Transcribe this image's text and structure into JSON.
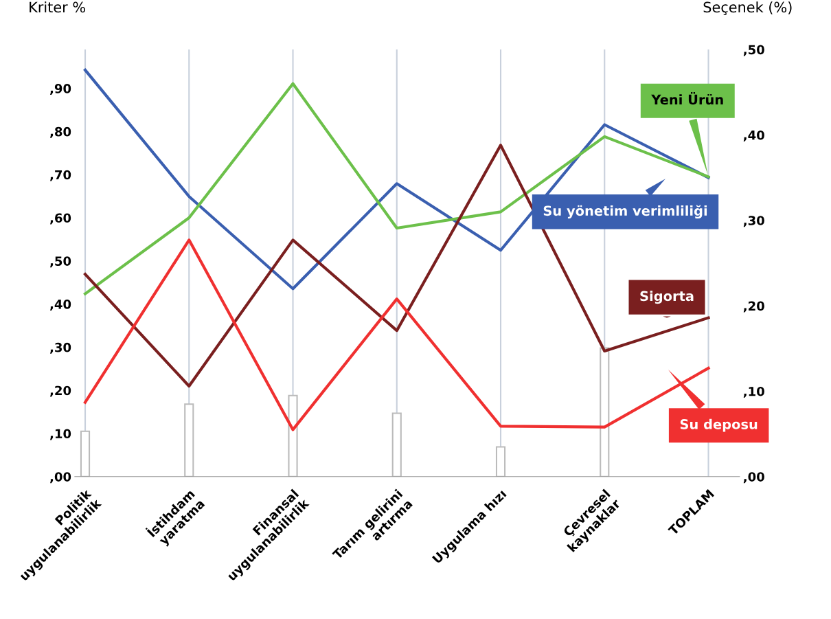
{
  "chart_data": {
    "type": "line",
    "ylabel": "Kriter %",
    "y2label": "Seçenek (%)",
    "categories": [
      "Politik\nuygulanabilirlik",
      "İstihdam\nyaratma",
      "Finansal\nuygulanabilirlik",
      "Tarım gelirini\nartırma",
      "Uygulama hızı",
      "Çevresel\nkaynaklar",
      "TOPLAM"
    ],
    "series": [
      {
        "type": "bar",
        "color": "#ffffff",
        "values": [
          10.5,
          16.8,
          18.8,
          14.7,
          6.9,
          29.8,
          null
        ]
      },
      {
        "name": "Su yönetim verimliliği",
        "color": "#3a5fb0",
        "axis": "y2",
        "values": [
          47.6,
          32.8,
          22.0,
          34.3,
          26.5,
          41.2,
          35.0
        ]
      },
      {
        "name": "Yeni Ürün",
        "color": "#6cc04a",
        "axis": "y2",
        "values": [
          21.4,
          30.3,
          46.0,
          29.1,
          31.0,
          39.8,
          35.1
        ]
      },
      {
        "name": "Sigorta",
        "color": "#7a1f1f",
        "axis": "y2",
        "values": [
          23.7,
          10.6,
          27.7,
          17.1,
          38.8,
          14.7,
          18.6
        ]
      },
      {
        "name": "Su deposu",
        "color": "#f03030",
        "axis": "y2",
        "values": [
          8.7,
          27.7,
          5.5,
          20.8,
          5.9,
          5.8,
          12.7
        ]
      }
    ],
    "ylim": [
      0,
      99
    ],
    "yticks": [
      {
        "value": 0,
        "label": ",00"
      },
      {
        "value": 10,
        "label": ",10"
      },
      {
        "value": 20,
        "label": ",20"
      },
      {
        "value": 30,
        "label": ",30"
      },
      {
        "value": 40,
        "label": ",40"
      },
      {
        "value": 50,
        "label": ",50"
      },
      {
        "value": 60,
        "label": ",60"
      },
      {
        "value": 70,
        "label": ",70"
      },
      {
        "value": 80,
        "label": ",80"
      },
      {
        "value": 90,
        "label": ",90"
      }
    ],
    "y2lim": [
      0,
      50
    ],
    "y2ticks": [
      {
        "value": 0,
        "label": ",00"
      },
      {
        "value": 10,
        "label": ",10"
      },
      {
        "value": 20,
        "label": ",20"
      },
      {
        "value": 30,
        "label": ",30"
      },
      {
        "value": 40,
        "label": ",40"
      },
      {
        "value": 50,
        "label": ",50"
      }
    ],
    "grid": "x",
    "marker": "none",
    "line_style": "solid"
  }
}
